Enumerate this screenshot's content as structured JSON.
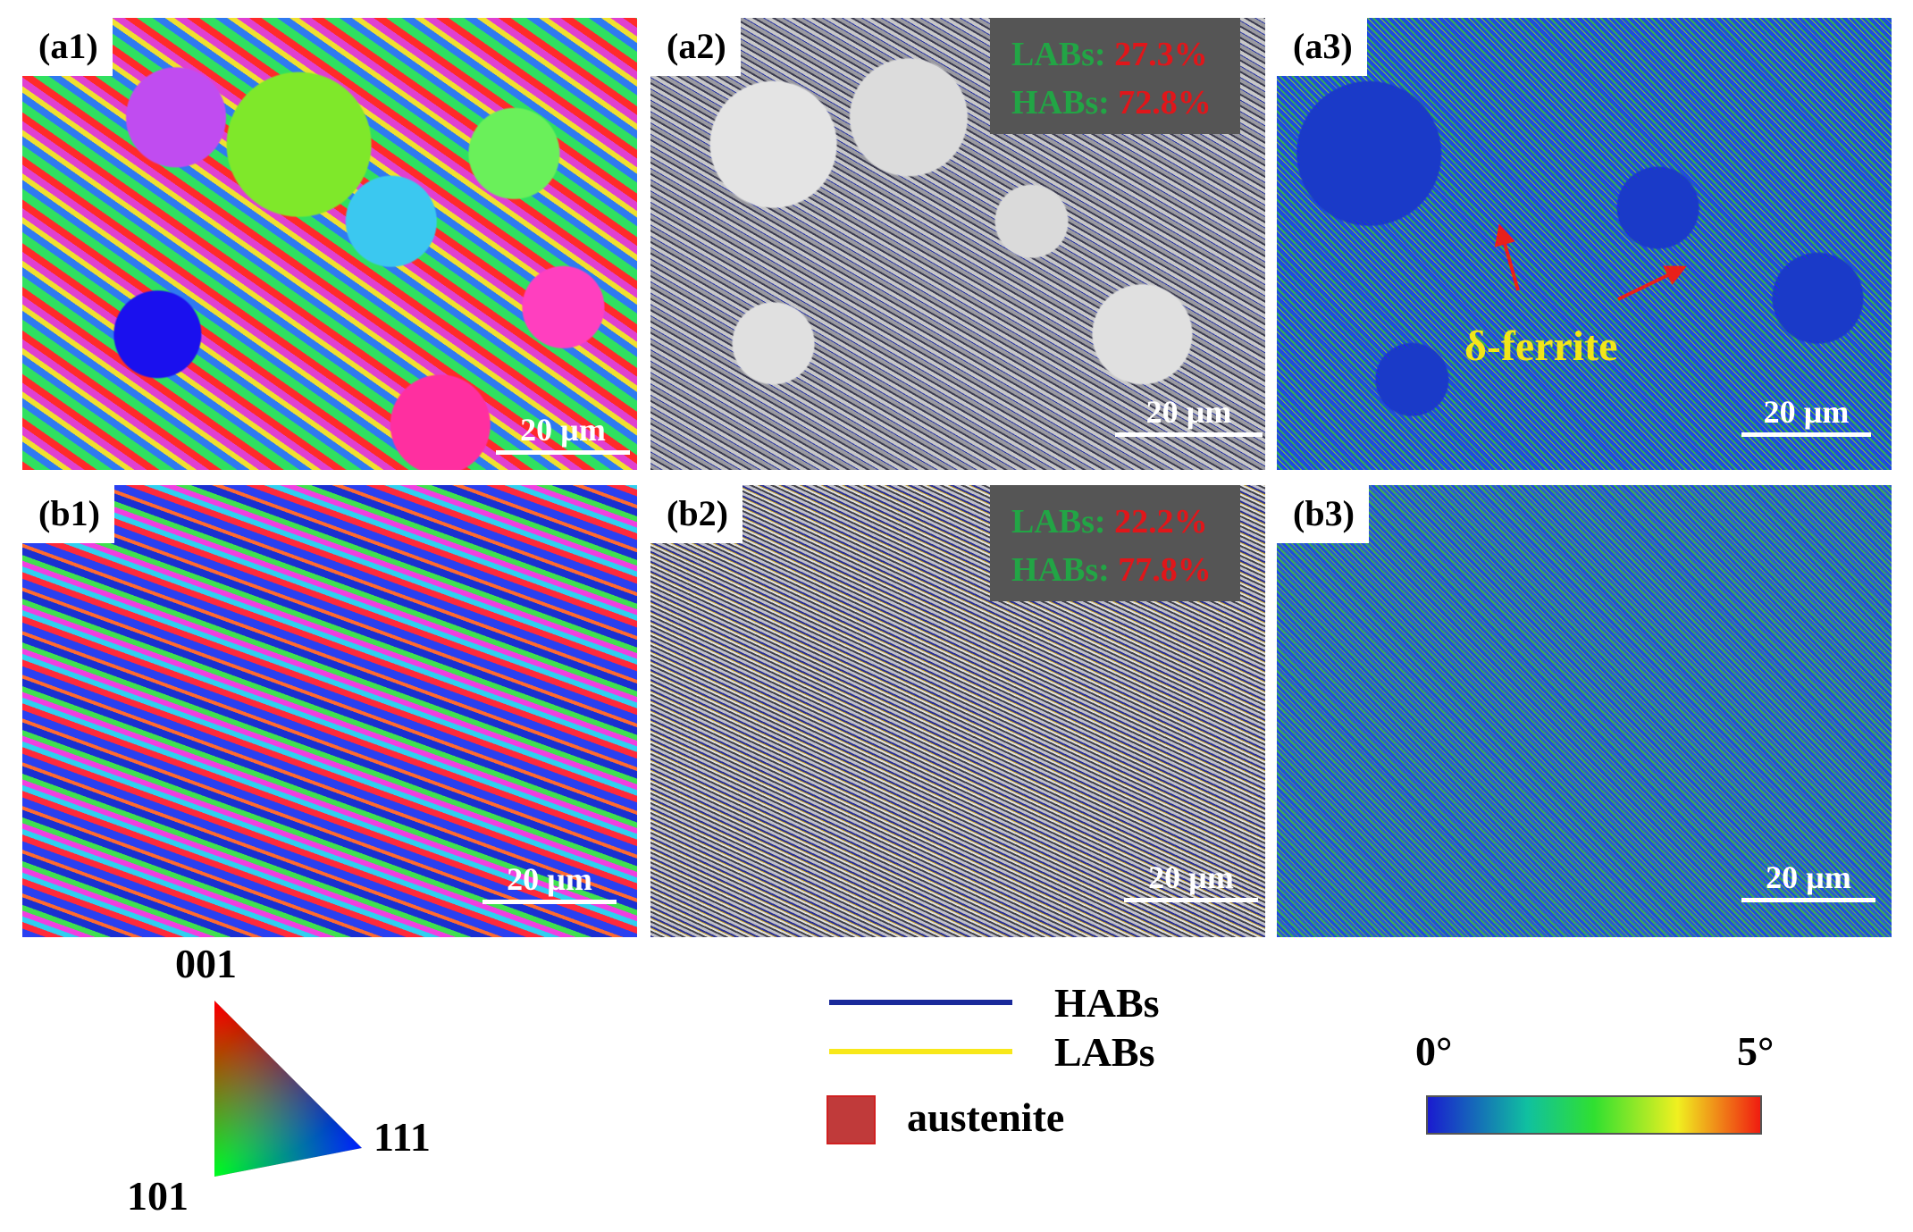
{
  "panels": [
    {
      "label": "(a1)",
      "scale_bar": "20 µm"
    },
    {
      "label": "(a2)",
      "scale_bar": "20 µm",
      "stats": [
        {
          "name": "LABs:",
          "value": "27.3%"
        },
        {
          "name": "HABs:",
          "value": "72.8%"
        }
      ]
    },
    {
      "label": "(a3)",
      "scale_bar": "20 µm",
      "annotation": "δ-ferrite"
    },
    {
      "label": "(b1)",
      "scale_bar": "20 µm"
    },
    {
      "label": "(b2)",
      "scale_bar": "20 µm",
      "stats": [
        {
          "name": "LABs:",
          "value": "22.2%"
        },
        {
          "name": "HABs:",
          "value": "77.8%"
        }
      ]
    },
    {
      "label": "(b3)",
      "scale_bar": "20 µm"
    }
  ],
  "legends": {
    "ipf": {
      "top": "001",
      "left": "101",
      "right": "111"
    },
    "boundaries": [
      {
        "name": "HABs"
      },
      {
        "name": "LABs"
      },
      {
        "name": "austenite"
      }
    ],
    "colorbar": {
      "min": "0°",
      "max": "5°"
    }
  }
}
